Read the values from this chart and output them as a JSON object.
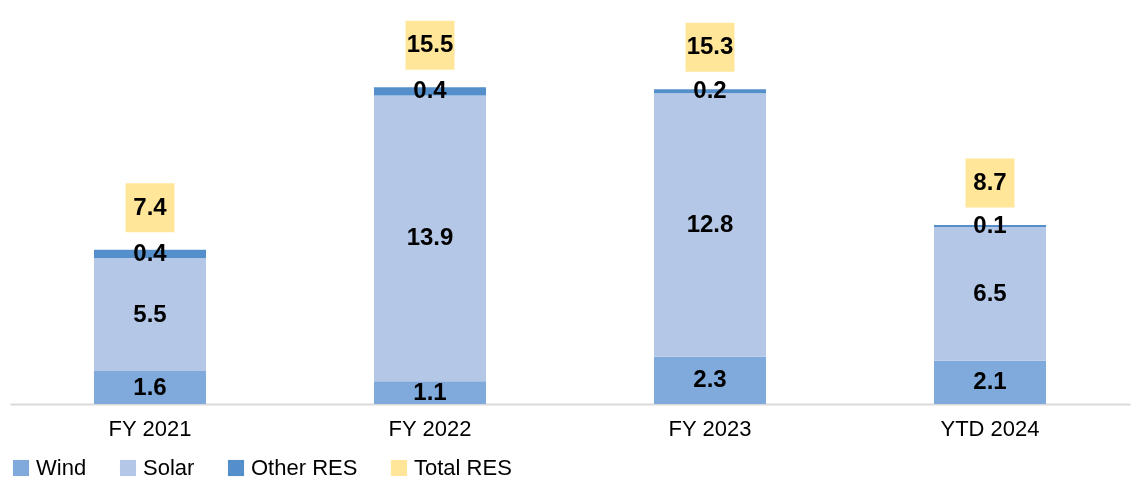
{
  "chart_data": {
    "type": "bar",
    "stacked": true,
    "data_labels": true,
    "legend": "bottom",
    "grid": false,
    "categories": [
      "FY 2021",
      "FY 2022",
      "FY 2023",
      "YTD 2024"
    ],
    "series": [
      {
        "name": "Wind",
        "color": "#7faadb",
        "values": [
          1.6,
          1.1,
          2.3,
          2.1
        ]
      },
      {
        "name": "Solar",
        "color": "#b4c7e7",
        "values": [
          5.5,
          13.9,
          12.8,
          6.5
        ]
      },
      {
        "name": "Other RES",
        "color": "#548fcb",
        "values": [
          0.4,
          0.4,
          0.2,
          0.1
        ]
      },
      {
        "name": "Total RES",
        "type": "scatter",
        "marker": "square",
        "color": "#ffe699",
        "values": [
          null,
          null,
          null,
          null
        ]
      }
    ],
    "totals": [
      "7.4",
      "15.5",
      "15.3",
      "8.7"
    ]
  }
}
